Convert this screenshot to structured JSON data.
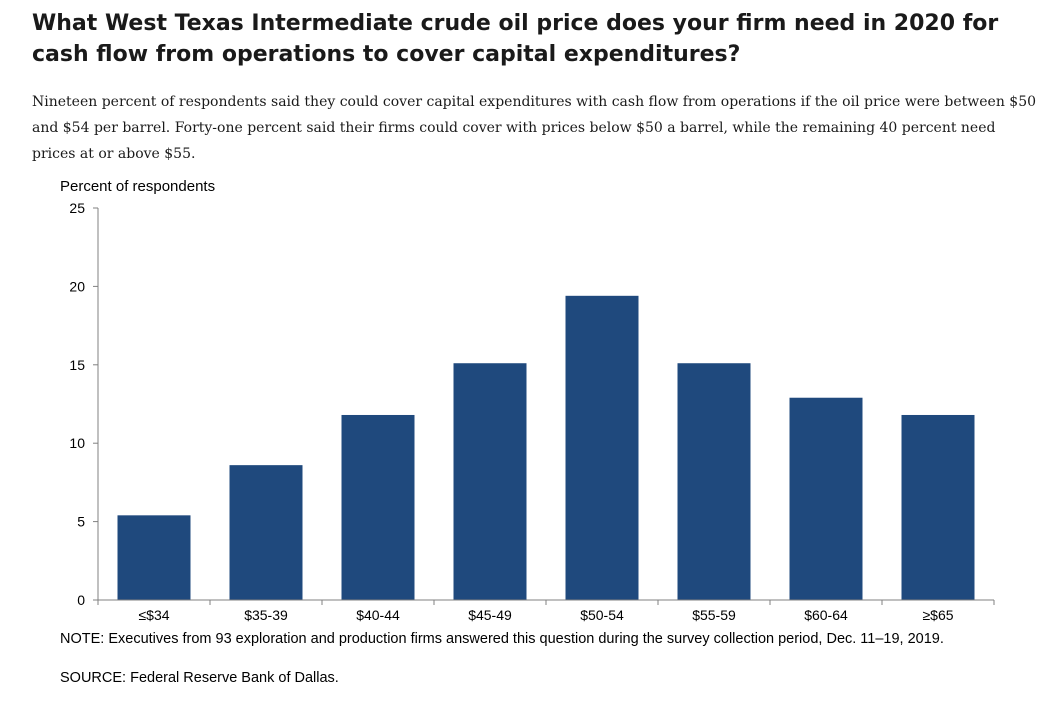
{
  "title": "What West Texas Intermediate crude oil price does your firm need in 2020 for cash flow from operations to cover capital expenditures?",
  "subtitle": "Nineteen percent of respondents said they could cover capital expenditures with cash flow from operations if the oil price were between $50 and $54 per barrel. Forty-one percent said their firms could cover with prices below $50 a barrel, while the remaining 40 percent need prices at or above $55.",
  "note": "NOTE: Executives from 93 exploration and production firms answered this question during the survey collection period, Dec. 11–19, 2019.",
  "source": "SOURCE: Federal Reserve Bank of Dallas.",
  "chart_data": {
    "type": "bar",
    "ylabel": "Percent of respondents",
    "xlabel": "",
    "categories": [
      "≤$34",
      "$35-39",
      "$40-44",
      "$45-49",
      "$50-54",
      "$55-59",
      "$60-64",
      "≥$65"
    ],
    "values": [
      5.4,
      8.6,
      11.8,
      15.1,
      19.4,
      15.1,
      12.9,
      11.8
    ],
    "ylim": [
      0,
      25
    ],
    "yticks": [
      "0",
      "5",
      "10",
      "15",
      "20",
      "25"
    ],
    "grid": false,
    "legend": "none",
    "bar_color": "#1f497d"
  }
}
